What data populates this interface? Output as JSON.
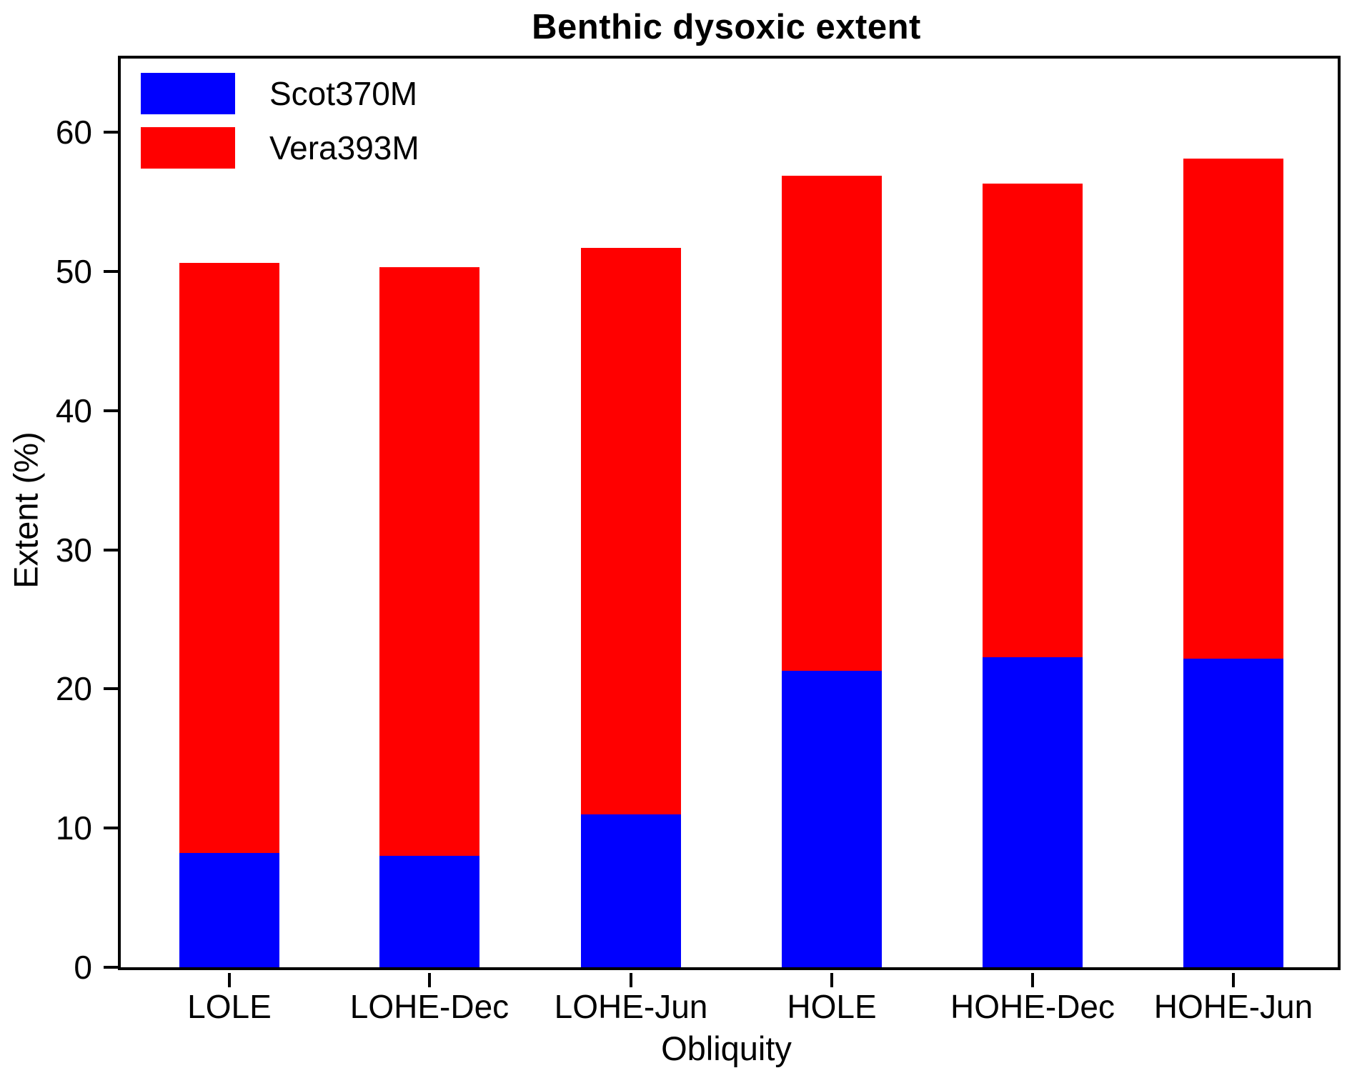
{
  "chart_data": {
    "type": "bar",
    "stacked": true,
    "title": "Benthic dysoxic extent",
    "xlabel": "Obliquity",
    "ylabel": "Extent (%)",
    "categories": [
      "LOLE",
      "LOHE-Dec",
      "LOHE-Jun",
      "HOLE",
      "HOHE-Dec",
      "HOHE-Jun"
    ],
    "series": [
      {
        "name": "Scot370M",
        "color": "#0000ff",
        "values": [
          8.2,
          8.0,
          11.0,
          21.3,
          22.3,
          22.2
        ]
      },
      {
        "name": "Vera393M",
        "color": "#ff0000",
        "values": [
          42.4,
          42.3,
          40.7,
          35.6,
          34.0,
          35.9
        ]
      }
    ],
    "stack_totals": [
      50.6,
      50.3,
      51.7,
      56.9,
      56.3,
      58.1
    ],
    "ylim": [
      0,
      65.3
    ],
    "yticks": [
      0,
      10,
      20,
      30,
      40,
      50,
      60
    ],
    "grid": false,
    "legend_position": "upper left",
    "axis_color": "#000000",
    "background_color": "#ffffff"
  }
}
